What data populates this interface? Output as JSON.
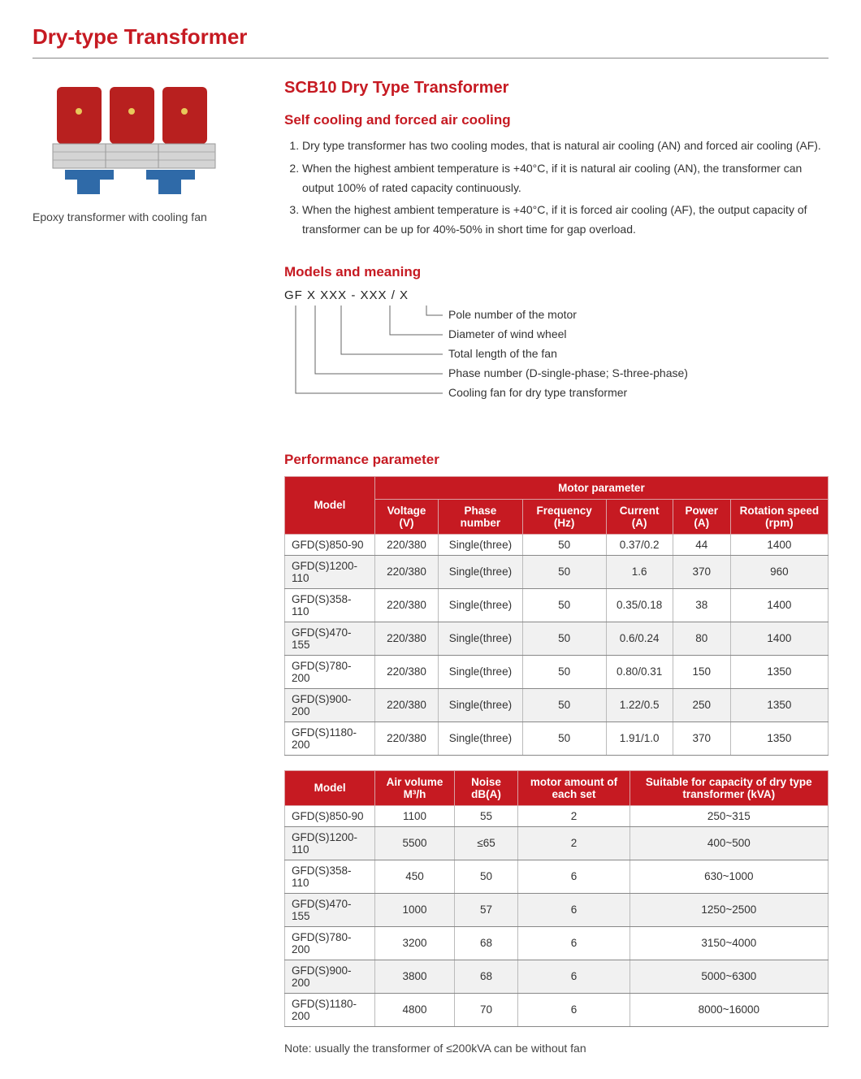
{
  "page_title": "Dry-type Transformer",
  "image_caption": "Epoxy transformer with cooling fan",
  "main_heading": "SCB10 Dry Type Transformer",
  "cooling": {
    "heading": "Self cooling and forced air cooling",
    "items": [
      "Dry type transformer has two cooling modes, that is natural air cooling (AN) and forced air cooling (AF).",
      "When the highest ambient temperature is +40°C, if it is natural air cooling (AN), the transformer can output 100% of rated capacity continuously.",
      "When the highest ambient temperature is +40°C, if it is forced air cooling (AF), the output capacity of transformer can be up for 40%-50% in short time for gap overload."
    ]
  },
  "models_meaning": {
    "heading": "Models and meaning",
    "code": "GF X XXX - XXX / X",
    "labels": [
      "Pole number of the motor",
      "Diameter of wind wheel",
      "Total length of the fan",
      "Phase number (D-single-phase; S-three-phase)",
      "Cooling fan for dry type transformer"
    ]
  },
  "perf_heading": "Performance parameter",
  "table1": {
    "header_group": "Motor parameter",
    "columns": [
      "Model",
      "Voltage (V)",
      "Phase number",
      "Frequency (Hz)",
      "Current (A)",
      "Power (A)",
      "Rotation speed (rpm)"
    ],
    "rows": [
      [
        "GFD(S)850-90",
        "220/380",
        "Single(three)",
        "50",
        "0.37/0.2",
        "44",
        "1400"
      ],
      [
        "GFD(S)1200-110",
        "220/380",
        "Single(three)",
        "50",
        "1.6",
        "370",
        "960"
      ],
      [
        "GFD(S)358-110",
        "220/380",
        "Single(three)",
        "50",
        "0.35/0.18",
        "38",
        "1400"
      ],
      [
        "GFD(S)470-155",
        "220/380",
        "Single(three)",
        "50",
        "0.6/0.24",
        "80",
        "1400"
      ],
      [
        "GFD(S)780-200",
        "220/380",
        "Single(three)",
        "50",
        "0.80/0.31",
        "150",
        "1350"
      ],
      [
        "GFD(S)900-200",
        "220/380",
        "Single(three)",
        "50",
        "1.22/0.5",
        "250",
        "1350"
      ],
      [
        "GFD(S)1180-200",
        "220/380",
        "Single(three)",
        "50",
        "1.91/1.0",
        "370",
        "1350"
      ]
    ]
  },
  "table2": {
    "columns": [
      "Model",
      "Air volume M³/h",
      "Noise dB(A)",
      "motor amount of each set",
      "Suitable for capacity of dry type transformer (kVA)"
    ],
    "rows": [
      [
        "GFD(S)850-90",
        "1100",
        "55",
        "2",
        "250~315"
      ],
      [
        "GFD(S)1200-110",
        "5500",
        "≤65",
        "2",
        "400~500"
      ],
      [
        "GFD(S)358-110",
        "450",
        "50",
        "6",
        "630~1000"
      ],
      [
        "GFD(S)470-155",
        "1000",
        "57",
        "6",
        "1250~2500"
      ],
      [
        "GFD(S)780-200",
        "3200",
        "68",
        "6",
        "3150~4000"
      ],
      [
        "GFD(S)900-200",
        "3800",
        "68",
        "6",
        "5000~6300"
      ],
      [
        "GFD(S)1180-200",
        "4800",
        "70",
        "6",
        "8000~16000"
      ]
    ]
  },
  "note": "Note: usually the transformer of ≤200kVA can be without fan",
  "colors": {
    "brand_red": "#c61a22",
    "text": "#333333",
    "row_alt": "#f1f1f1",
    "rule": "#888888"
  },
  "image": {
    "coil_red": "#b8201f",
    "frame_silver": "#c8c8c8",
    "base_blue": "#2f6aa8"
  }
}
